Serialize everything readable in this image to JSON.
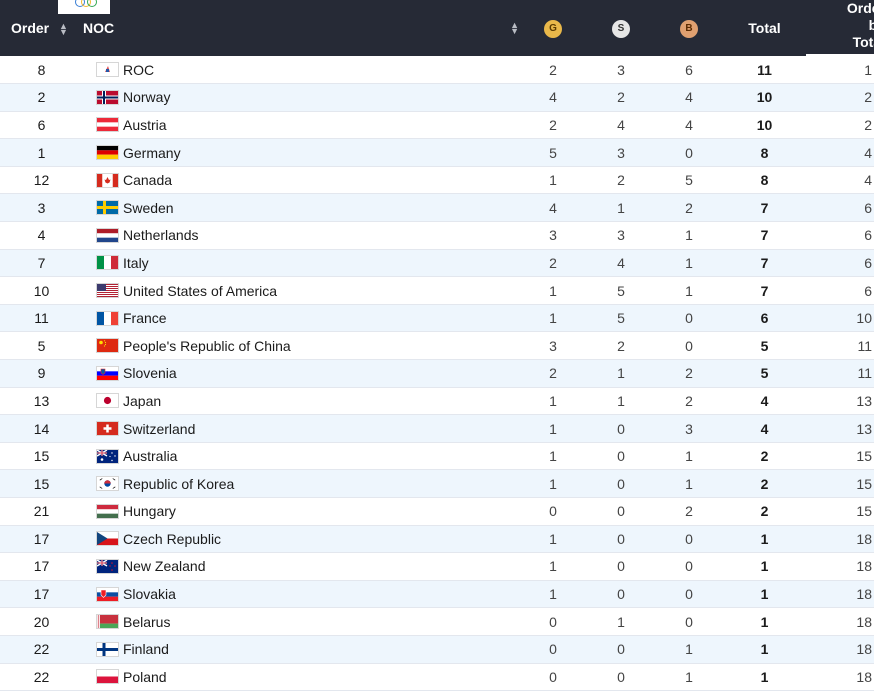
{
  "header": {
    "order": "Order",
    "noc": "NOC",
    "gold": "G",
    "silver": "S",
    "bronze": "B",
    "total": "Total",
    "order_by_total_1": "Order",
    "order_by_total_2": "by",
    "order_by_total_3": "Total"
  },
  "colors": {
    "header_bg": "#262a36",
    "row_alt": "#eef6fd",
    "gold": "#e9b84a",
    "silver": "#e6e6e6",
    "bronze": "#e0a070"
  },
  "rows": [
    {
      "order": "8",
      "noc": "ROC",
      "flag": "roc-flag-icon",
      "g": "2",
      "s": "3",
      "b": "6",
      "total": "11",
      "obt": "1"
    },
    {
      "order": "2",
      "noc": "Norway",
      "flag": "norway-flag-icon",
      "g": "4",
      "s": "2",
      "b": "4",
      "total": "10",
      "obt": "2"
    },
    {
      "order": "6",
      "noc": "Austria",
      "flag": "austria-flag-icon",
      "g": "2",
      "s": "4",
      "b": "4",
      "total": "10",
      "obt": "2"
    },
    {
      "order": "1",
      "noc": "Germany",
      "flag": "germany-flag-icon",
      "g": "5",
      "s": "3",
      "b": "0",
      "total": "8",
      "obt": "4"
    },
    {
      "order": "12",
      "noc": "Canada",
      "flag": "canada-flag-icon",
      "g": "1",
      "s": "2",
      "b": "5",
      "total": "8",
      "obt": "4"
    },
    {
      "order": "3",
      "noc": "Sweden",
      "flag": "sweden-flag-icon",
      "g": "4",
      "s": "1",
      "b": "2",
      "total": "7",
      "obt": "6"
    },
    {
      "order": "4",
      "noc": "Netherlands",
      "flag": "netherlands-flag-icon",
      "g": "3",
      "s": "3",
      "b": "1",
      "total": "7",
      "obt": "6"
    },
    {
      "order": "7",
      "noc": "Italy",
      "flag": "italy-flag-icon",
      "g": "2",
      "s": "4",
      "b": "1",
      "total": "7",
      "obt": "6"
    },
    {
      "order": "10",
      "noc": "United States of America",
      "flag": "usa-flag-icon",
      "g": "1",
      "s": "5",
      "b": "1",
      "total": "7",
      "obt": "6"
    },
    {
      "order": "11",
      "noc": "France",
      "flag": "france-flag-icon",
      "g": "1",
      "s": "5",
      "b": "0",
      "total": "6",
      "obt": "10"
    },
    {
      "order": "5",
      "noc": "People's Republic of China",
      "flag": "china-flag-icon",
      "g": "3",
      "s": "2",
      "b": "0",
      "total": "5",
      "obt": "11"
    },
    {
      "order": "9",
      "noc": "Slovenia",
      "flag": "slovenia-flag-icon",
      "g": "2",
      "s": "1",
      "b": "2",
      "total": "5",
      "obt": "11"
    },
    {
      "order": "13",
      "noc": "Japan",
      "flag": "japan-flag-icon",
      "g": "1",
      "s": "1",
      "b": "2",
      "total": "4",
      "obt": "13"
    },
    {
      "order": "14",
      "noc": "Switzerland",
      "flag": "switzerland-flag-icon",
      "g": "1",
      "s": "0",
      "b": "3",
      "total": "4",
      "obt": "13"
    },
    {
      "order": "15",
      "noc": "Australia",
      "flag": "australia-flag-icon",
      "g": "1",
      "s": "0",
      "b": "1",
      "total": "2",
      "obt": "15"
    },
    {
      "order": "15",
      "noc": "Republic of Korea",
      "flag": "korea-flag-icon",
      "g": "1",
      "s": "0",
      "b": "1",
      "total": "2",
      "obt": "15"
    },
    {
      "order": "21",
      "noc": "Hungary",
      "flag": "hungary-flag-icon",
      "g": "0",
      "s": "0",
      "b": "2",
      "total": "2",
      "obt": "15"
    },
    {
      "order": "17",
      "noc": "Czech Republic",
      "flag": "czech-flag-icon",
      "g": "1",
      "s": "0",
      "b": "0",
      "total": "1",
      "obt": "18"
    },
    {
      "order": "17",
      "noc": "New Zealand",
      "flag": "new-zealand-flag-icon",
      "g": "1",
      "s": "0",
      "b": "0",
      "total": "1",
      "obt": "18"
    },
    {
      "order": "17",
      "noc": "Slovakia",
      "flag": "slovakia-flag-icon",
      "g": "1",
      "s": "0",
      "b": "0",
      "total": "1",
      "obt": "18"
    },
    {
      "order": "20",
      "noc": "Belarus",
      "flag": "belarus-flag-icon",
      "g": "0",
      "s": "1",
      "b": "0",
      "total": "1",
      "obt": "18"
    },
    {
      "order": "22",
      "noc": "Finland",
      "flag": "finland-flag-icon",
      "g": "0",
      "s": "0",
      "b": "1",
      "total": "1",
      "obt": "18"
    },
    {
      "order": "22",
      "noc": "Poland",
      "flag": "poland-flag-icon",
      "g": "0",
      "s": "0",
      "b": "1",
      "total": "1",
      "obt": "18"
    }
  ]
}
